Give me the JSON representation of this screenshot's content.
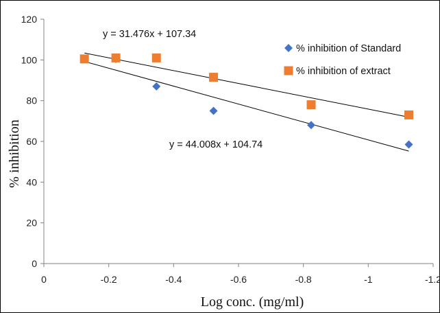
{
  "chart_data": {
    "type": "scatter",
    "xlabel": "Log conc. (mg/ml)",
    "ylabel": "% inhibition",
    "xlim": [
      0,
      -1.2
    ],
    "ylim": [
      0,
      120
    ],
    "x_ticks": [
      "0",
      "-0.2",
      "-0.4",
      "-0.6",
      "-0.8",
      "-1",
      "-1.2"
    ],
    "y_ticks": [
      "0",
      "20",
      "40",
      "60",
      "80",
      "100",
      "120"
    ],
    "grid": false,
    "legend_position": "top-right",
    "series": [
      {
        "name": "% inhibition of Standard",
        "marker": "diamond",
        "color": "#4472C4",
        "x": [
          -0.125,
          -0.222,
          -0.347,
          -0.523,
          -0.824,
          -1.125
        ],
        "y": [
          100.5,
          100.5,
          87.0,
          75.0,
          68.0,
          58.5
        ]
      },
      {
        "name": "% inhibition of extract",
        "marker": "square",
        "color": "#ED7D31",
        "x": [
          -0.125,
          -0.222,
          -0.347,
          -0.523,
          -0.824,
          -1.125
        ],
        "y": [
          100.5,
          101.0,
          101.0,
          91.5,
          78.0,
          73.0
        ]
      }
    ],
    "trendlines": [
      {
        "series": "% inhibition of extract",
        "equation": "y = 31.476x + 107.34",
        "slope": 31.476,
        "intercept": 107.34
      },
      {
        "series": "% inhibition of Standard",
        "equation": "y = 44.008x + 104.74",
        "slope": 44.008,
        "intercept": 104.74
      }
    ]
  }
}
